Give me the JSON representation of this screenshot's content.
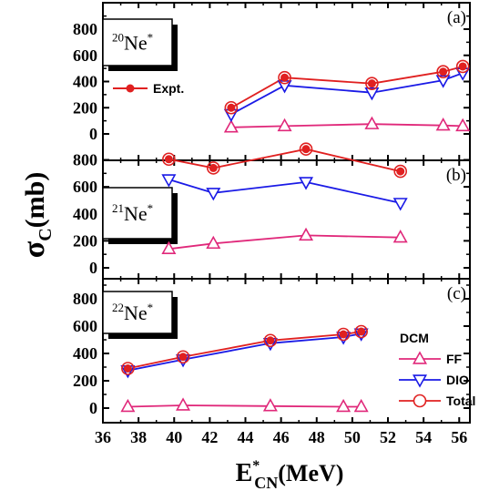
{
  "chart_data": {
    "type": "line",
    "xlabel": {
      "main": "E",
      "sup": "*",
      "sub": "CN",
      "unit": "(MeV)"
    },
    "ylabel": {
      "main": "σ",
      "sub": "C",
      "unit": "(mb)"
    },
    "xlim": [
      36,
      56.6
    ],
    "x_ticks": [
      "36",
      "38",
      "40",
      "42",
      "44",
      "46",
      "48",
      "50",
      "52",
      "54",
      "56"
    ],
    "legend": {
      "title": "DCM",
      "entries": [
        "FF",
        "DIO",
        "Total"
      ],
      "expt_label": "Expt."
    },
    "colors": {
      "FF": "#e0287a",
      "DIO": "#1a1ae6",
      "Total": "#e02020",
      "Expt": "#e02020"
    },
    "panels": [
      {
        "id": "a",
        "label": "(a)",
        "nucleus": {
          "mass": "20",
          "symbol": "Ne",
          "star": "*"
        },
        "ylim": [
          0,
          960
        ],
        "y_ticks": [
          "0",
          "200",
          "400",
          "600",
          "800"
        ],
        "series": {
          "FF": {
            "x": [
              43.2,
              46.2,
              51.1,
              55.1,
              56.2
            ],
            "y": [
              50,
              60,
              75,
              65,
              60
            ]
          },
          "DIO": {
            "x": [
              43.2,
              46.2,
              51.1,
              55.1,
              56.2
            ],
            "y": [
              150,
              370,
              315,
              410,
              465
            ]
          },
          "Total": {
            "x": [
              43.2,
              46.2,
              51.1,
              55.1,
              56.2
            ],
            "y": [
              200,
              430,
              385,
              475,
              515
            ]
          },
          "Expt": {
            "x": [
              43.2,
              46.2,
              51.1,
              55.1,
              56.2
            ],
            "y": [
              200,
              430,
              385,
              475,
              515
            ]
          }
        }
      },
      {
        "id": "b",
        "label": "(b)",
        "nucleus": {
          "mass": "21",
          "symbol": "Ne",
          "star": "*"
        },
        "ylim": [
          -20,
          970
        ],
        "y_ticks": [
          "0",
          "200",
          "400",
          "600",
          "800"
        ],
        "series": {
          "FF": {
            "x": [
              39.7,
              42.2,
              47.4,
              52.7
            ],
            "y": [
              140,
              180,
              240,
              225
            ]
          },
          "DIO": {
            "x": [
              39.7,
              42.2,
              47.4,
              52.7
            ],
            "y": [
              655,
              555,
              635,
              480
            ]
          },
          "Total": {
            "x": [
              39.7,
              42.2,
              47.4,
              52.7
            ],
            "y": [
              805,
              740,
              880,
              715
            ]
          },
          "Expt": {
            "x": [
              39.7,
              42.2,
              47.4,
              52.7
            ],
            "y": [
              805,
              740,
              880,
              715
            ]
          }
        }
      },
      {
        "id": "c",
        "label": "(c)",
        "nucleus": {
          "mass": "22",
          "symbol": "Ne",
          "star": "*"
        },
        "ylim": [
          -60,
          960
        ],
        "y_ticks": [
          "0",
          "200",
          "400",
          "600",
          "800"
        ],
        "series": {
          "FF": {
            "x": [
              37.4,
              40.5,
              45.4,
              49.5,
              50.5
            ],
            "y": [
              10,
              20,
              15,
              10,
              10
            ]
          },
          "DIO": {
            "x": [
              37.4,
              40.5,
              45.4,
              49.5,
              50.5
            ],
            "y": [
              275,
              355,
              475,
              520,
              545
            ]
          },
          "Total": {
            "x": [
              37.4,
              40.5,
              45.4,
              49.5,
              50.5
            ],
            "y": [
              290,
              375,
              495,
              540,
              560
            ]
          },
          "Expt": {
            "x": [
              37.4,
              40.5,
              45.4,
              49.5,
              50.5
            ],
            "y": [
              290,
              375,
              495,
              540,
              560
            ]
          }
        }
      }
    ]
  }
}
